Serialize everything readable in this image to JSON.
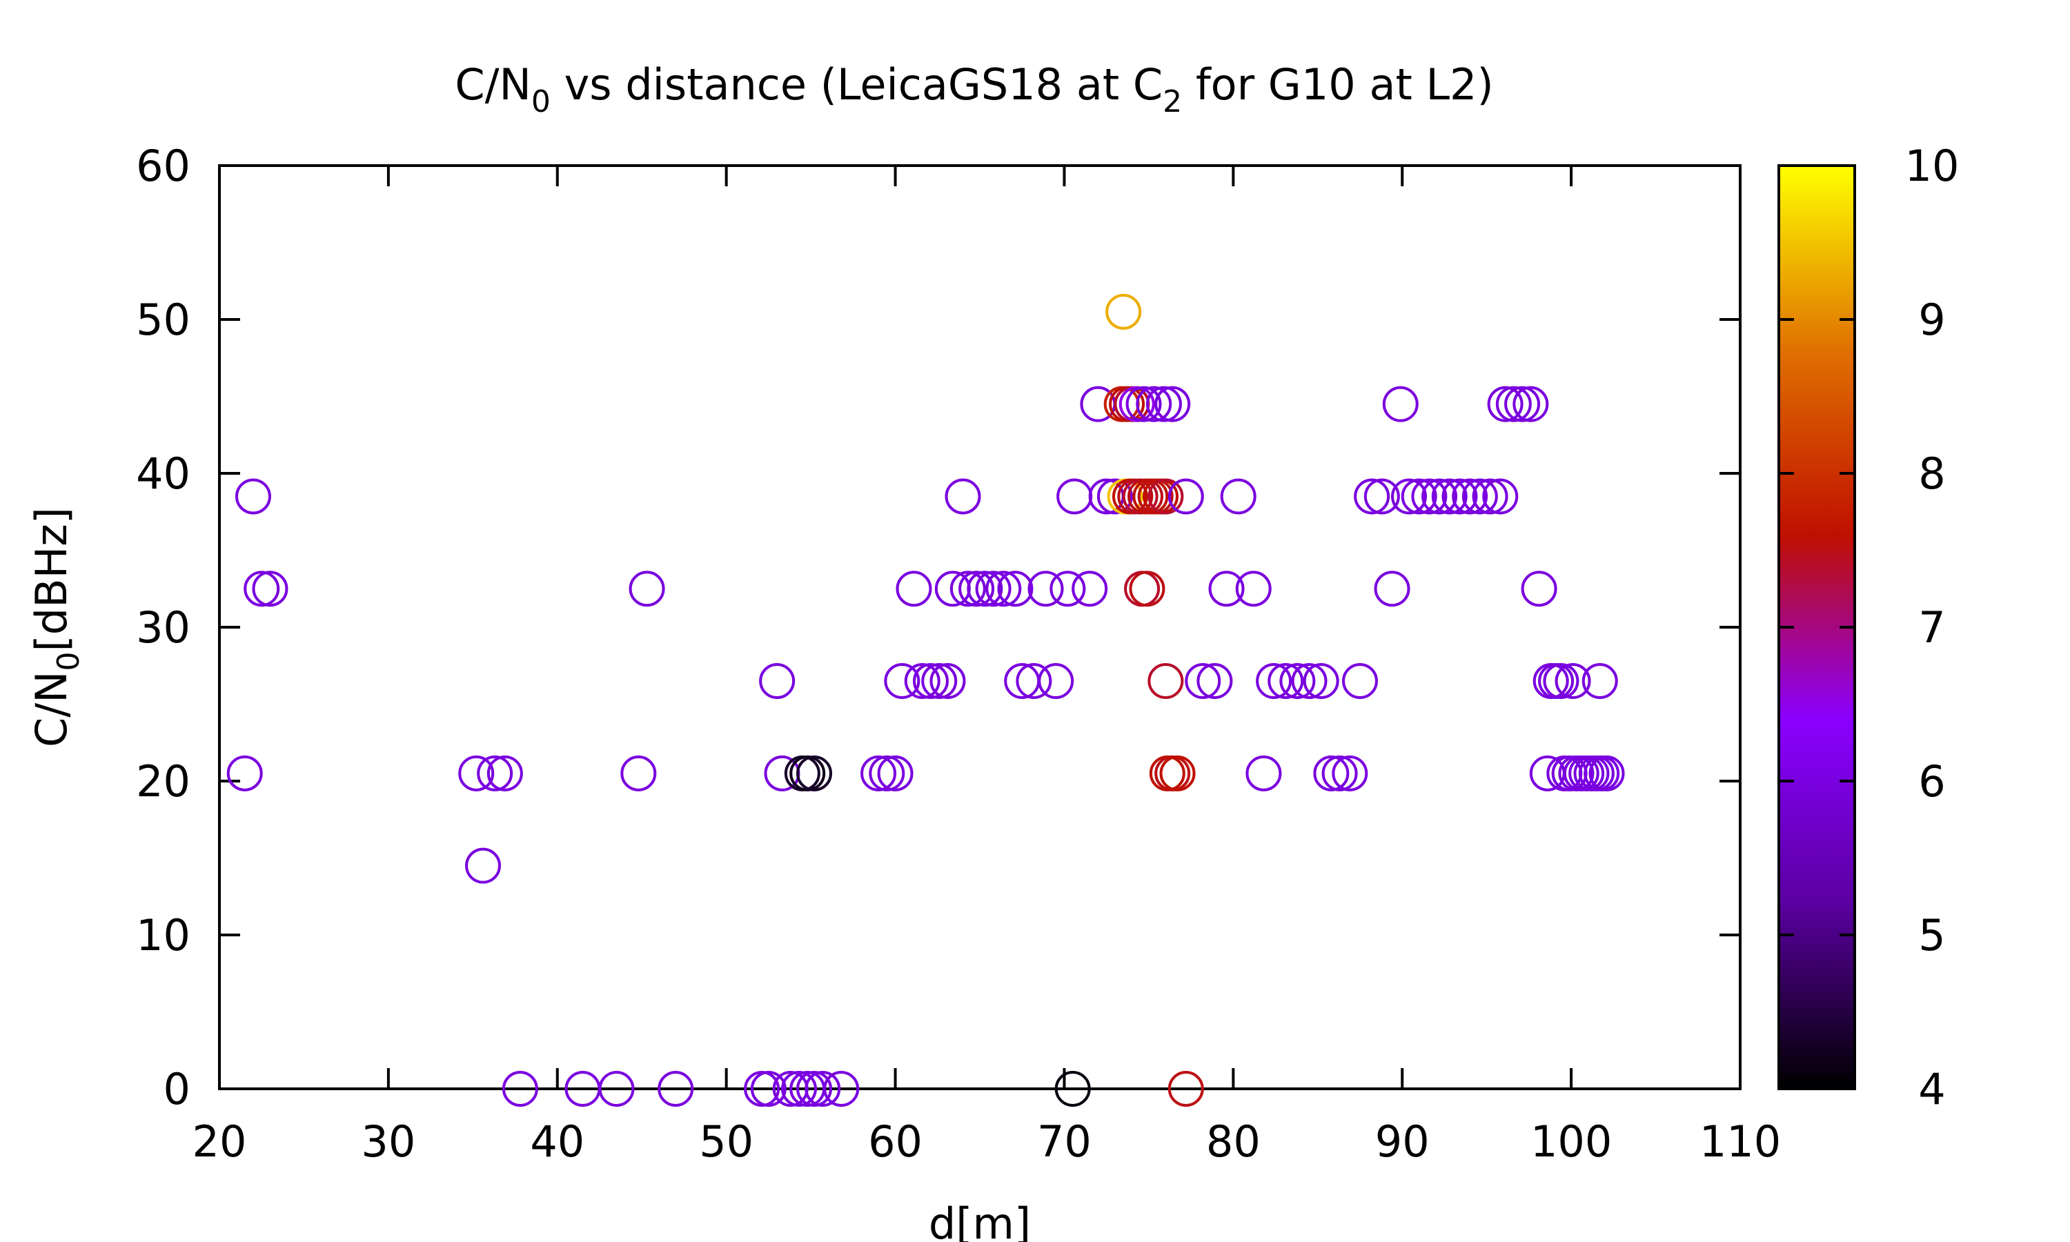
{
  "chart_data": {
    "type": "scatter",
    "title": {
      "main": "C/N",
      "sub0": "0",
      "mid": " vs distance (LeicaGS18 at C",
      "sub1": "2",
      "end": " for G10 at L2)"
    },
    "xlabel": "d[m]",
    "ylabel": {
      "main": "C/N",
      "sub": "0",
      "end": "[dBHz]"
    },
    "xlim": [
      20,
      110
    ],
    "ylim": [
      0,
      60
    ],
    "xticks": [
      "20",
      "30",
      "40",
      "50",
      "60",
      "70",
      "80",
      "90",
      "100",
      "110"
    ],
    "yticks": [
      "0",
      "10",
      "20",
      "30",
      "40",
      "50",
      "60"
    ],
    "colorbar": {
      "range": [
        4,
        10
      ],
      "ticks": [
        "4",
        "5",
        "6",
        "7",
        "8",
        "9",
        "10"
      ],
      "stops": [
        "#000000",
        "#5a00a0",
        "#8a00ff",
        "#c01000",
        "#e07000",
        "#ffff00"
      ]
    },
    "marker": "open-circle",
    "grid": false,
    "points": [
      {
        "x": 21.5,
        "y": 20.5,
        "c": 6
      },
      {
        "x": 22.0,
        "y": 38.5,
        "c": 6
      },
      {
        "x": 22.5,
        "y": 32.5,
        "c": 6
      },
      {
        "x": 23.0,
        "y": 32.5,
        "c": 6
      },
      {
        "x": 35.2,
        "y": 20.5,
        "c": 6
      },
      {
        "x": 35.6,
        "y": 14.5,
        "c": 6
      },
      {
        "x": 36.3,
        "y": 20.5,
        "c": 6
      },
      {
        "x": 36.9,
        "y": 20.5,
        "c": 6
      },
      {
        "x": 37.8,
        "y": 0,
        "c": 6
      },
      {
        "x": 41.5,
        "y": 0,
        "c": 6
      },
      {
        "x": 43.5,
        "y": 0,
        "c": 6
      },
      {
        "x": 44.8,
        "y": 20.5,
        "c": 6
      },
      {
        "x": 45.3,
        "y": 32.5,
        "c": 6
      },
      {
        "x": 47.0,
        "y": 0,
        "c": 6
      },
      {
        "x": 52.1,
        "y": 0,
        "c": 6
      },
      {
        "x": 52.5,
        "y": 0,
        "c": 6
      },
      {
        "x": 53.0,
        "y": 26.5,
        "c": 6
      },
      {
        "x": 53.3,
        "y": 20.5,
        "c": 6
      },
      {
        "x": 53.8,
        "y": 0,
        "c": 6
      },
      {
        "x": 54.3,
        "y": 0,
        "c": 6
      },
      {
        "x": 54.8,
        "y": 0,
        "c": 6
      },
      {
        "x": 55.2,
        "y": 0,
        "c": 6
      },
      {
        "x": 55.7,
        "y": 0,
        "c": 6
      },
      {
        "x": 56.8,
        "y": 0,
        "c": 6
      },
      {
        "x": 54.5,
        "y": 20.5,
        "c": 4.3
      },
      {
        "x": 54.8,
        "y": 20.5,
        "c": 4.2
      },
      {
        "x": 55.2,
        "y": 20.5,
        "c": 4.3
      },
      {
        "x": 59.0,
        "y": 20.5,
        "c": 6
      },
      {
        "x": 59.5,
        "y": 20.5,
        "c": 6
      },
      {
        "x": 60.0,
        "y": 20.5,
        "c": 6
      },
      {
        "x": 60.4,
        "y": 26.5,
        "c": 6
      },
      {
        "x": 61.1,
        "y": 32.5,
        "c": 6
      },
      {
        "x": 61.6,
        "y": 26.5,
        "c": 6
      },
      {
        "x": 62.1,
        "y": 26.5,
        "c": 6
      },
      {
        "x": 62.6,
        "y": 26.5,
        "c": 6
      },
      {
        "x": 63.1,
        "y": 26.5,
        "c": 6
      },
      {
        "x": 63.4,
        "y": 32.5,
        "c": 6
      },
      {
        "x": 64.0,
        "y": 38.5,
        "c": 6
      },
      {
        "x": 64.3,
        "y": 32.5,
        "c": 6
      },
      {
        "x": 64.8,
        "y": 32.5,
        "c": 6
      },
      {
        "x": 65.3,
        "y": 32.5,
        "c": 6
      },
      {
        "x": 65.8,
        "y": 32.5,
        "c": 6
      },
      {
        "x": 66.4,
        "y": 32.5,
        "c": 6
      },
      {
        "x": 67.1,
        "y": 32.5,
        "c": 6
      },
      {
        "x": 67.5,
        "y": 26.5,
        "c": 6
      },
      {
        "x": 68.2,
        "y": 26.5,
        "c": 6
      },
      {
        "x": 68.9,
        "y": 32.5,
        "c": 6
      },
      {
        "x": 69.5,
        "y": 26.5,
        "c": 6
      },
      {
        "x": 70.2,
        "y": 32.5,
        "c": 6
      },
      {
        "x": 70.5,
        "y": 0,
        "c": 4.1
      },
      {
        "x": 70.6,
        "y": 38.5,
        "c": 6
      },
      {
        "x": 71.5,
        "y": 32.5,
        "c": 6
      },
      {
        "x": 72.0,
        "y": 44.5,
        "c": 6
      },
      {
        "x": 72.5,
        "y": 38.5,
        "c": 6
      },
      {
        "x": 73.0,
        "y": 38.5,
        "c": 6
      },
      {
        "x": 73.5,
        "y": 50.5,
        "c": 9.3
      },
      {
        "x": 73.4,
        "y": 44.5,
        "c": 7.8
      },
      {
        "x": 73.7,
        "y": 44.5,
        "c": 7.6
      },
      {
        "x": 74.0,
        "y": 44.5,
        "c": 7.4
      },
      {
        "x": 74.3,
        "y": 44.5,
        "c": 6.5
      },
      {
        "x": 74.7,
        "y": 44.5,
        "c": 6
      },
      {
        "x": 75.3,
        "y": 44.5,
        "c": 6
      },
      {
        "x": 75.9,
        "y": 44.5,
        "c": 6
      },
      {
        "x": 76.4,
        "y": 44.5,
        "c": 6
      },
      {
        "x": 73.6,
        "y": 38.5,
        "c": 9.5
      },
      {
        "x": 73.9,
        "y": 38.5,
        "c": 7.6
      },
      {
        "x": 74.2,
        "y": 38.5,
        "c": 7.5
      },
      {
        "x": 74.5,
        "y": 38.5,
        "c": 7.4
      },
      {
        "x": 74.8,
        "y": 38.5,
        "c": 7.5
      },
      {
        "x": 75.1,
        "y": 38.5,
        "c": 7.6
      },
      {
        "x": 75.4,
        "y": 38.5,
        "c": 7.5
      },
      {
        "x": 75.7,
        "y": 38.5,
        "c": 7.6
      },
      {
        "x": 76.0,
        "y": 38.5,
        "c": 7.4
      },
      {
        "x": 74.6,
        "y": 32.5,
        "c": 7.4
      },
      {
        "x": 74.9,
        "y": 32.5,
        "c": 7.5
      },
      {
        "x": 76.0,
        "y": 26.5,
        "c": 7.4
      },
      {
        "x": 76.1,
        "y": 20.5,
        "c": 7.6
      },
      {
        "x": 76.4,
        "y": 20.5,
        "c": 7.5
      },
      {
        "x": 76.7,
        "y": 20.5,
        "c": 7.6
      },
      {
        "x": 77.2,
        "y": 0,
        "c": 7.5
      },
      {
        "x": 77.2,
        "y": 38.5,
        "c": 6
      },
      {
        "x": 78.2,
        "y": 26.5,
        "c": 6
      },
      {
        "x": 78.9,
        "y": 26.5,
        "c": 6
      },
      {
        "x": 79.6,
        "y": 32.5,
        "c": 6
      },
      {
        "x": 80.3,
        "y": 38.5,
        "c": 6
      },
      {
        "x": 81.2,
        "y": 32.5,
        "c": 6
      },
      {
        "x": 81.8,
        "y": 20.5,
        "c": 6
      },
      {
        "x": 82.4,
        "y": 26.5,
        "c": 6
      },
      {
        "x": 83.1,
        "y": 26.5,
        "c": 6
      },
      {
        "x": 83.8,
        "y": 26.5,
        "c": 6
      },
      {
        "x": 84.5,
        "y": 26.5,
        "c": 6
      },
      {
        "x": 85.2,
        "y": 26.5,
        "c": 6
      },
      {
        "x": 85.8,
        "y": 20.5,
        "c": 6
      },
      {
        "x": 86.3,
        "y": 20.5,
        "c": 6
      },
      {
        "x": 86.9,
        "y": 20.5,
        "c": 6
      },
      {
        "x": 87.5,
        "y": 26.5,
        "c": 6
      },
      {
        "x": 88.2,
        "y": 38.5,
        "c": 6
      },
      {
        "x": 88.8,
        "y": 38.5,
        "c": 6
      },
      {
        "x": 89.4,
        "y": 32.5,
        "c": 6
      },
      {
        "x": 89.9,
        "y": 44.5,
        "c": 6
      },
      {
        "x": 90.4,
        "y": 38.5,
        "c": 6
      },
      {
        "x": 91.0,
        "y": 38.5,
        "c": 6
      },
      {
        "x": 91.6,
        "y": 38.5,
        "c": 6
      },
      {
        "x": 92.2,
        "y": 38.5,
        "c": 6
      },
      {
        "x": 92.8,
        "y": 38.5,
        "c": 6
      },
      {
        "x": 93.4,
        "y": 38.5,
        "c": 6
      },
      {
        "x": 94.0,
        "y": 38.5,
        "c": 6
      },
      {
        "x": 94.6,
        "y": 38.5,
        "c": 6
      },
      {
        "x": 95.2,
        "y": 38.5,
        "c": 6
      },
      {
        "x": 95.8,
        "y": 38.5,
        "c": 6
      },
      {
        "x": 96.1,
        "y": 44.5,
        "c": 6
      },
      {
        "x": 96.6,
        "y": 44.5,
        "c": 6
      },
      {
        "x": 97.1,
        "y": 44.5,
        "c": 6
      },
      {
        "x": 97.6,
        "y": 44.5,
        "c": 6
      },
      {
        "x": 98.1,
        "y": 32.5,
        "c": 6
      },
      {
        "x": 98.6,
        "y": 20.5,
        "c": 6
      },
      {
        "x": 98.8,
        "y": 26.5,
        "c": 6
      },
      {
        "x": 99.1,
        "y": 26.5,
        "c": 6
      },
      {
        "x": 99.4,
        "y": 26.5,
        "c": 6
      },
      {
        "x": 99.6,
        "y": 20.5,
        "c": 6
      },
      {
        "x": 99.9,
        "y": 20.5,
        "c": 6
      },
      {
        "x": 100.1,
        "y": 26.5,
        "c": 6
      },
      {
        "x": 100.3,
        "y": 20.5,
        "c": 6
      },
      {
        "x": 100.6,
        "y": 20.5,
        "c": 6
      },
      {
        "x": 100.9,
        "y": 20.5,
        "c": 6
      },
      {
        "x": 101.2,
        "y": 20.5,
        "c": 6
      },
      {
        "x": 101.5,
        "y": 20.5,
        "c": 6
      },
      {
        "x": 101.7,
        "y": 26.5,
        "c": 6
      },
      {
        "x": 101.8,
        "y": 20.5,
        "c": 6
      },
      {
        "x": 102.1,
        "y": 20.5,
        "c": 6
      }
    ]
  }
}
